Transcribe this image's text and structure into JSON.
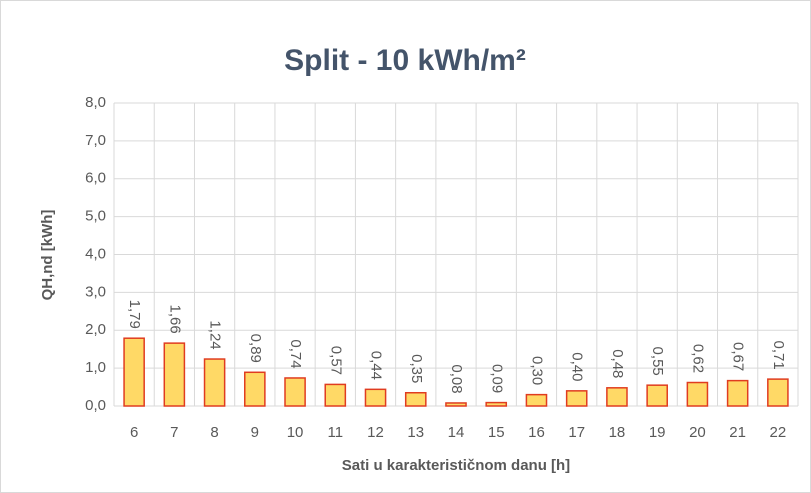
{
  "chart_data": {
    "type": "bar",
    "title": "Split - 10 kWh/m²",
    "x_label": "Sati u karakterističnom danu [h]",
    "y_label": "QH,nd [kWh]",
    "categories": [
      6,
      7,
      8,
      9,
      10,
      11,
      12,
      13,
      14,
      15,
      16,
      17,
      18,
      19,
      20,
      21,
      22
    ],
    "values": [
      1.79,
      1.66,
      1.24,
      0.89,
      0.74,
      0.57,
      0.44,
      0.35,
      0.08,
      0.09,
      0.3,
      0.4,
      0.48,
      0.55,
      0.62,
      0.67,
      0.71
    ],
    "value_labels": [
      "1,79",
      "1,66",
      "1,24",
      "0,89",
      "0,74",
      "0,57",
      "0,44",
      "0,35",
      "0,08",
      "0,09",
      "0,30",
      "0,40",
      "0,48",
      "0,55",
      "0,62",
      "0,67",
      "0,71"
    ],
    "color": "#ffd966",
    "edge_color": "#e03c20",
    "ylim": [
      0,
      8
    ],
    "yticks": [
      {
        "value": 0,
        "label": "0,0"
      },
      {
        "value": 1,
        "label": "1,0"
      },
      {
        "value": 2,
        "label": "2,0"
      },
      {
        "value": 3,
        "label": "3,0"
      },
      {
        "value": 4,
        "label": "4,0"
      },
      {
        "value": 5,
        "label": "5,0"
      },
      {
        "value": 6,
        "label": "6,0"
      },
      {
        "value": 7,
        "label": "7,0"
      },
      {
        "value": 8,
        "label": "8,0"
      }
    ],
    "grid": true
  }
}
